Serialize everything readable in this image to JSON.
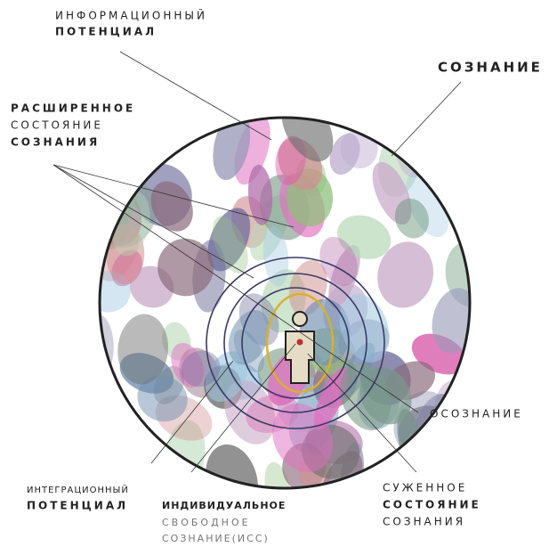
{
  "labels": {
    "information_potential": [
      "ИНФОРМАЦИОННЫЙ",
      "ПОТЕНЦИАЛ"
    ],
    "consciousness": "СОЗНАНИЕ",
    "expanded_state": [
      "РАСШИРЕННОЕ",
      "СОСТОЯНИЕ",
      "СОЗНАНИЯ"
    ],
    "awareness": "ОСОЗНАНИЕ",
    "integration_potential": [
      "ИНТЕГРАЦИОННЫЙ",
      "ПОТЕНЦИАЛ"
    ],
    "individual_free_consciousness": [
      "ИНДИВИДУАЛЬНОЕ",
      "СВОБОДНОЕ",
      "СОЗНАНИЕ(ИСС)"
    ],
    "narrowed_state": [
      "СУЖЕННОЕ",
      "СОСТОЯНИЕ",
      "СОЗНАНИЯ"
    ]
  }
}
